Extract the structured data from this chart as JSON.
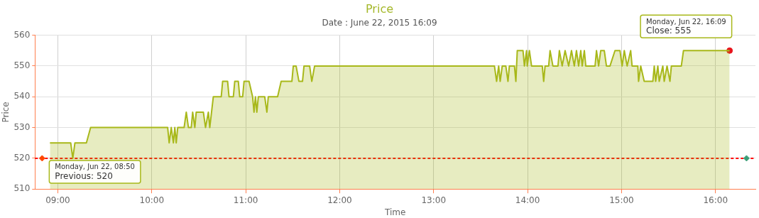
{
  "chart_data": {
    "type": "area",
    "title": "Price",
    "subtitle": "Date : June 22, 2015 16:09",
    "xlabel": "Time",
    "ylabel": "Price",
    "xlim": [
      8.757,
      16.425
    ],
    "ylim": [
      510,
      560
    ],
    "xticks": [
      {
        "value": 9,
        "label": "09:00"
      },
      {
        "value": 10,
        "label": "10:00"
      },
      {
        "value": 11,
        "label": "11:00"
      },
      {
        "value": 12,
        "label": "12:00"
      },
      {
        "value": 13,
        "label": "13:00"
      },
      {
        "value": 14,
        "label": "14:00"
      },
      {
        "value": 15,
        "label": "15:00"
      },
      {
        "value": 16,
        "label": "16:00"
      }
    ],
    "yticks": [
      510,
      520,
      530,
      540,
      550,
      560
    ],
    "grid": true,
    "legend": false,
    "ref_lines": [
      {
        "axis": "y",
        "value": 520,
        "color": "#ff0000",
        "line_style": "dashed"
      }
    ],
    "annotations": [
      {
        "text": "Monday, Jun 22, 08:50\nPrevious: 520",
        "x": 8.833,
        "y": 520
      },
      {
        "text": "Monday, Jun 22, 16:09\nClose: 555",
        "x": 16.15,
        "y": 555
      }
    ],
    "series": [
      {
        "color": "#a8b81a",
        "marker": "none",
        "x": [
          8.916,
          9.137,
          9.159,
          9.182,
          9.304,
          9.349,
          10.169,
          10.185,
          10.207,
          10.23,
          10.245,
          10.26,
          10.276,
          10.344,
          10.367,
          10.39,
          10.42,
          10.435,
          10.458,
          10.473,
          10.549,
          10.572,
          10.602,
          10.617,
          10.655,
          10.739,
          10.754,
          10.807,
          10.822,
          10.868,
          10.883,
          10.921,
          10.936,
          10.967,
          10.982,
          11.035,
          11.073,
          11.088,
          11.103,
          11.118,
          11.134,
          11.202,
          11.225,
          11.24,
          11.339,
          11.377,
          11.491,
          11.506,
          11.536,
          11.566,
          11.604,
          11.62,
          11.68,
          11.703,
          11.733,
          13.647,
          13.67,
          13.692,
          13.708,
          13.73,
          13.768,
          13.791,
          13.806,
          13.86,
          13.875,
          13.89,
          13.951,
          13.966,
          13.989,
          13.996,
          14.019,
          14.042,
          14.156,
          14.171,
          14.186,
          14.224,
          14.239,
          14.269,
          14.323,
          14.338,
          14.368,
          14.399,
          14.437,
          14.467,
          14.497,
          14.52,
          14.543,
          14.566,
          14.581,
          14.604,
          14.619,
          14.718,
          14.733,
          14.756,
          14.778,
          14.816,
          14.839,
          14.877,
          14.93,
          14.983,
          15.006,
          15.029,
          15.059,
          15.097,
          15.112,
          15.173,
          15.181,
          15.204,
          15.241,
          15.333,
          15.348,
          15.363,
          15.386,
          15.401,
          15.439,
          15.454,
          15.484,
          15.515,
          15.53,
          15.636,
          15.659,
          16.15
        ],
        "values": [
          525,
          525,
          520,
          525,
          525,
          530,
          530,
          525,
          530,
          525,
          530,
          525,
          530,
          530,
          535,
          530,
          530,
          535,
          530,
          535,
          535,
          530,
          535,
          530,
          540,
          540,
          545,
          545,
          540,
          540,
          545,
          545,
          540,
          540,
          545,
          545,
          540,
          535,
          540,
          535,
          540,
          540,
          535,
          540,
          540,
          545,
          545,
          550,
          550,
          545,
          545,
          550,
          550,
          545,
          550,
          550,
          545,
          550,
          545,
          550,
          550,
          545,
          550,
          550,
          545,
          555,
          555,
          550,
          555,
          550,
          555,
          550,
          550,
          545,
          550,
          550,
          555,
          550,
          550,
          555,
          550,
          555,
          550,
          555,
          550,
          555,
          550,
          555,
          550,
          555,
          550,
          550,
          555,
          550,
          555,
          555,
          550,
          550,
          555,
          555,
          550,
          555,
          550,
          555,
          550,
          550,
          545,
          550,
          545,
          545,
          550,
          545,
          550,
          545,
          550,
          545,
          550,
          545,
          550,
          550,
          555,
          555
        ]
      },
      {
        "type": "scatter",
        "marker": "diamond",
        "x": [
          8.833,
          16.33
        ],
        "values": [
          520,
          520
        ],
        "colors": [
          "#ff4500",
          "#3a9e78"
        ]
      },
      {
        "type": "scatter",
        "marker": "circle",
        "x": [
          16.15
        ],
        "values": [
          555
        ],
        "colors": [
          "#e8141c"
        ]
      }
    ]
  }
}
